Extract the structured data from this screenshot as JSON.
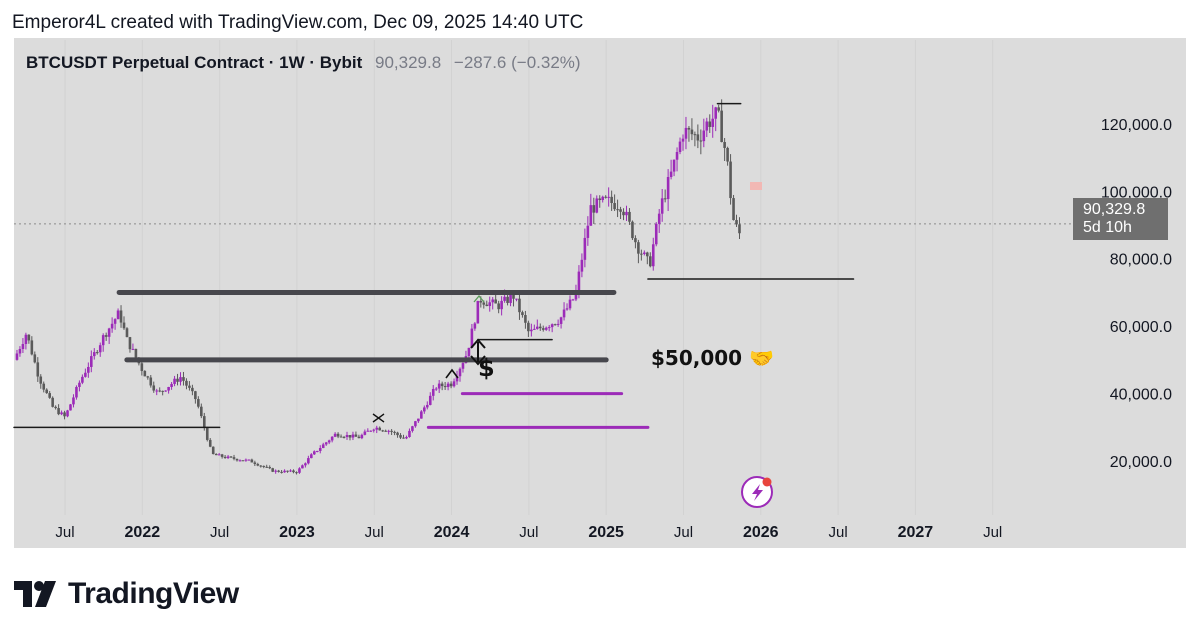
{
  "header": {
    "attribution": "Emperor4L created with TradingView.com, Dec 09, 2025 14:40 UTC"
  },
  "symbol": {
    "name": "BTCUSDT Perpetual Contract · 1W · Bybit",
    "price": "90,329.8",
    "change": "−287.6 (−0.32%)"
  },
  "last_price_tag": {
    "price": "90,329.8",
    "countdown": "5d 10h"
  },
  "annotation": {
    "label": "$50,000 🤝",
    "dollar_icon": "$"
  },
  "footer": {
    "brand": "TradingView"
  },
  "colors": {
    "panel_bg": "#dcdcdc",
    "up_candle": "#9c2bb8",
    "down_candle": "#5a5a5a",
    "purple_level": "#9c2bb8",
    "gray_level": "#47474d",
    "tag_bg": "#6f6f6f"
  },
  "chart_data": {
    "type": "candlestick",
    "timeframe": "1W",
    "y_axis": {
      "ticks": [
        20000,
        40000,
        60000,
        80000,
        100000,
        120000
      ],
      "tick_labels": [
        "20,000.0",
        "40,000.0",
        "60,000.0",
        "80,000.0",
        "100,000.0",
        "120,000.0"
      ],
      "range": [
        4000,
        133000
      ]
    },
    "x_axis": {
      "ticks": [
        2021.5,
        2022.0,
        2022.5,
        2023.0,
        2023.5,
        2024.0,
        2024.5,
        2025.0,
        2025.5,
        2026.0,
        2026.5,
        2027.0,
        2027.5
      ],
      "tick_labels": [
        "Jul",
        "2022",
        "Jul",
        "2023",
        "Jul",
        "2024",
        "Jul",
        "2025",
        "Jul",
        "2026",
        "Jul",
        "2027",
        "Jul"
      ],
      "range": [
        2021.17,
        2028.0
      ]
    },
    "last_price": 90329.8,
    "price_path": [
      [
        2021.17,
        50000
      ],
      [
        2021.25,
        58000
      ],
      [
        2021.33,
        45000
      ],
      [
        2021.42,
        36000
      ],
      [
        2021.5,
        33000
      ],
      [
        2021.6,
        44000
      ],
      [
        2021.75,
        57000
      ],
      [
        2021.85,
        64000
      ],
      [
        2021.9,
        56000
      ],
      [
        2022.0,
        47000
      ],
      [
        2022.1,
        40000
      ],
      [
        2022.25,
        45000
      ],
      [
        2022.35,
        38000
      ],
      [
        2022.45,
        22000
      ],
      [
        2022.55,
        21000
      ],
      [
        2022.7,
        20000
      ],
      [
        2022.85,
        17000
      ],
      [
        2023.0,
        16800
      ],
      [
        2023.1,
        22000
      ],
      [
        2023.25,
        28000
      ],
      [
        2023.4,
        27000
      ],
      [
        2023.5,
        30000
      ],
      [
        2023.6,
        29000
      ],
      [
        2023.7,
        26500
      ],
      [
        2023.8,
        34000
      ],
      [
        2023.9,
        42000
      ],
      [
        2024.0,
        43000
      ],
      [
        2024.1,
        52000
      ],
      [
        2024.18,
        68000
      ],
      [
        2024.3,
        66000
      ],
      [
        2024.4,
        69000
      ],
      [
        2024.5,
        58000
      ],
      [
        2024.6,
        60000
      ],
      [
        2024.7,
        62000
      ],
      [
        2024.8,
        69000
      ],
      [
        2024.9,
        95000
      ],
      [
        2025.0,
        97000
      ],
      [
        2025.1,
        96000
      ],
      [
        2025.2,
        84000
      ],
      [
        2025.28,
        78000
      ],
      [
        2025.35,
        95000
      ],
      [
        2025.42,
        105000
      ],
      [
        2025.5,
        118000
      ],
      [
        2025.6,
        116000
      ],
      [
        2025.65,
        120000
      ],
      [
        2025.72,
        123000
      ],
      [
        2025.78,
        110000
      ],
      [
        2025.82,
        92000
      ],
      [
        2025.86,
        87000
      ],
      [
        2025.88,
        90329.8
      ]
    ],
    "levels": [
      {
        "color": "gray_level",
        "width": 5,
        "price": 70000,
        "x_from": 2021.85,
        "x_to": 2025.05
      },
      {
        "color": "gray_level",
        "width": 5,
        "price": 50000,
        "x_from": 2021.9,
        "x_to": 2025.0
      },
      {
        "color": "purple_level",
        "width": 3,
        "price": 40000,
        "x_from": 2024.07,
        "x_to": 2025.1
      },
      {
        "color": "purple_level",
        "width": 3,
        "price": 30000,
        "x_from": 2023.85,
        "x_to": 2025.27
      },
      {
        "color": "thin_dark",
        "width": 1.5,
        "price": 74000,
        "x_from": 2025.27,
        "x_to": 2026.6
      },
      {
        "color": "thin_dark",
        "width": 1.5,
        "price": 126000,
        "x_from": 2025.72,
        "x_to": 2025.87
      },
      {
        "color": "thin_dark",
        "width": 1.5,
        "price": 56000,
        "x_from": 2024.17,
        "x_to": 2024.65
      },
      {
        "color": "thin_dark",
        "width": 1.5,
        "price": 30000,
        "x_from": 2021.17,
        "x_to": 2022.5
      }
    ]
  }
}
